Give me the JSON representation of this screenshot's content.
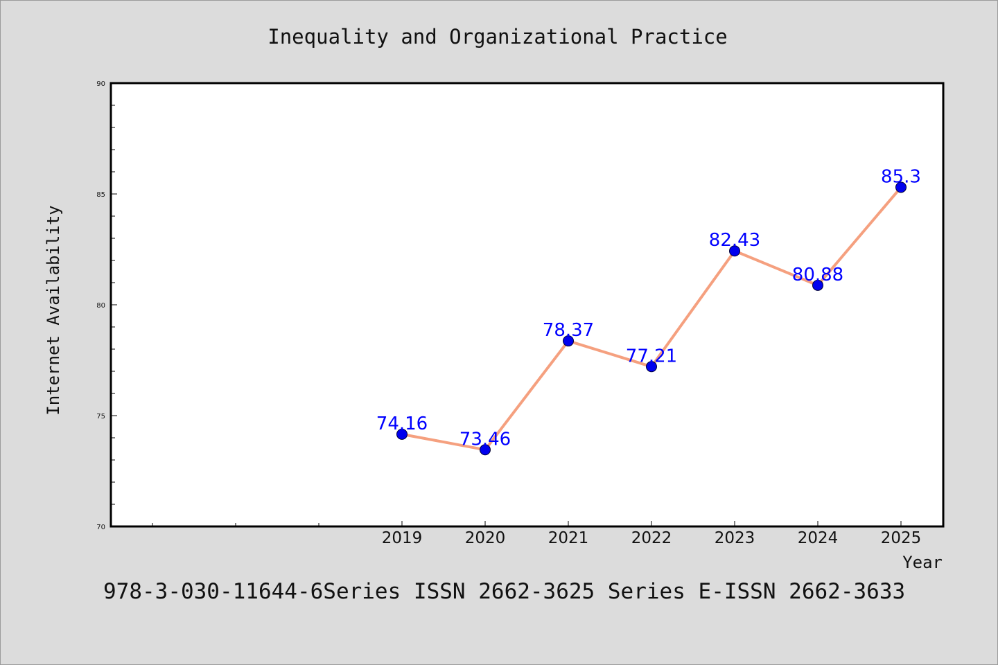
{
  "footer": "978-3-030-11644-6Series ISSN 2662-3625 Series E-ISSN 2662-3633",
  "colors": {
    "background": "#dcdcdc",
    "plot_background": "#ffffff",
    "line": "#f5a07f",
    "marker": "#0000ee",
    "data_label": "#0000ff"
  },
  "chart_data": {
    "type": "line",
    "title": "Inequality and Organizational Practice",
    "xlabel": "Year",
    "ylabel": "Internet Availability",
    "ylim": [
      70,
      90
    ],
    "yticks": [
      70,
      75,
      80,
      85,
      90
    ],
    "categories": [
      "2019",
      "2020",
      "2021",
      "2022",
      "2023",
      "2024",
      "2025"
    ],
    "series": [
      {
        "values": [
          74.16,
          73.46,
          78.37,
          77.21,
          82.43,
          80.88,
          85.3
        ],
        "labels": [
          "74.16",
          "73.46",
          "78.37",
          "77.21",
          "82.43",
          "80.88",
          "85.3"
        ]
      }
    ],
    "grid": false,
    "legend": "none"
  }
}
